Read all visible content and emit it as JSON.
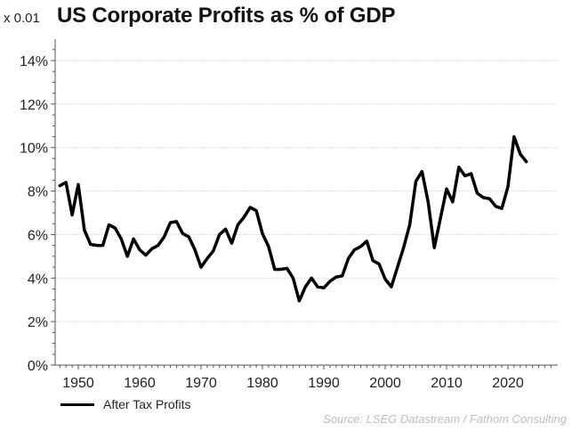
{
  "chart_data": {
    "type": "line",
    "title": "US Corporate Profits as % of GDP",
    "unit_label": "x 0.01",
    "xlabel": "",
    "ylabel": "",
    "xlim": [
      1946,
      2027
    ],
    "ylim": [
      0,
      14
    ],
    "grid": true,
    "x_ticks": [
      1950,
      1960,
      1970,
      1980,
      1990,
      2000,
      2010,
      2020
    ],
    "x_tick_labels": [
      "1950",
      "1960",
      "1970",
      "1980",
      "1990",
      "2000",
      "2010",
      "2020"
    ],
    "y_ticks": [
      0,
      2,
      4,
      6,
      8,
      10,
      12,
      14
    ],
    "y_tick_labels": [
      "0%",
      "2%",
      "4%",
      "6%",
      "8%",
      "10%",
      "12%",
      "14%"
    ],
    "legend_position": "bottom-left",
    "series": [
      {
        "name": "After Tax Profits",
        "color": "#000000",
        "x": [
          1947,
          1948,
          1949,
          1950,
          1951,
          1952,
          1953,
          1954,
          1955,
          1956,
          1957,
          1958,
          1959,
          1960,
          1961,
          1962,
          1963,
          1964,
          1965,
          1966,
          1967,
          1968,
          1969,
          1970,
          1971,
          1972,
          1973,
          1974,
          1975,
          1976,
          1977,
          1978,
          1979,
          1980,
          1981,
          1982,
          1983,
          1984,
          1985,
          1986,
          1987,
          1988,
          1989,
          1990,
          1991,
          1992,
          1993,
          1994,
          1995,
          1996,
          1997,
          1998,
          1999,
          2000,
          2001,
          2002,
          2003,
          2004,
          2005,
          2006,
          2007,
          2008,
          2009,
          2010,
          2011,
          2012,
          2013,
          2014,
          2015,
          2016,
          2017,
          2018,
          2019,
          2020,
          2021,
          2022,
          2023
        ],
        "values": [
          8.25,
          8.4,
          6.9,
          8.3,
          6.2,
          5.55,
          5.5,
          5.5,
          6.45,
          6.3,
          5.8,
          5.0,
          5.8,
          5.3,
          5.05,
          5.35,
          5.5,
          5.9,
          6.55,
          6.6,
          6.05,
          5.9,
          5.3,
          4.5,
          4.9,
          5.25,
          6.0,
          6.25,
          5.6,
          6.45,
          6.8,
          7.25,
          7.1,
          6.05,
          5.45,
          4.4,
          4.4,
          4.45,
          4.0,
          2.95,
          3.6,
          4.0,
          3.6,
          3.55,
          3.85,
          4.05,
          4.1,
          4.9,
          5.3,
          5.45,
          5.7,
          4.8,
          4.65,
          3.95,
          3.6,
          4.5,
          5.4,
          6.45,
          8.45,
          8.9,
          7.5,
          5.4,
          6.75,
          8.1,
          7.5,
          9.1,
          8.7,
          8.8,
          7.9,
          7.7,
          7.65,
          7.3,
          7.2,
          8.2,
          10.5,
          9.7,
          9.35
        ]
      }
    ],
    "source": "Source: LSEG Datastream / Fathom Consulting"
  },
  "colors": {
    "line": "#000000",
    "grid": "#dddddd",
    "axis": "#555555",
    "source_text": "#bdbdbd"
  }
}
